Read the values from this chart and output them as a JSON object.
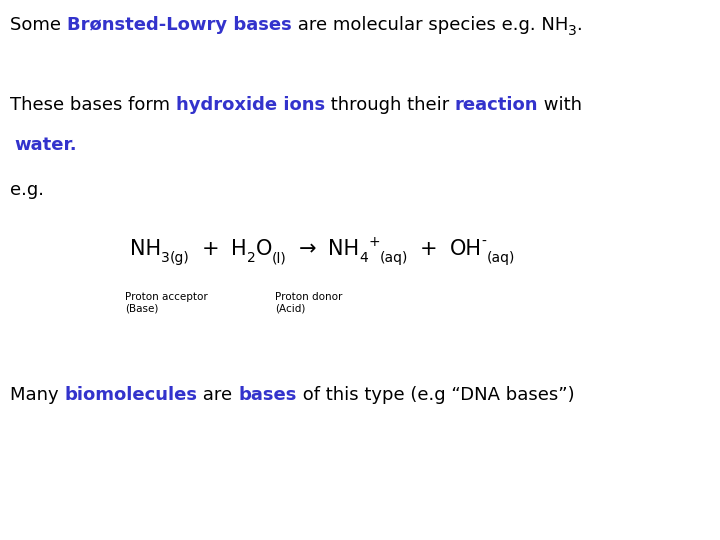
{
  "bg_color": "#ffffff",
  "blue_color": "#3333cc",
  "black_color": "#000000",
  "line1_parts": [
    {
      "text": "Some ",
      "color": "#000000",
      "bold": false,
      "sub": false
    },
    {
      "text": "Brønsted-Lowry bases",
      "color": "#3333cc",
      "bold": true,
      "sub": false
    },
    {
      "text": " are molecular species e.g. NH",
      "color": "#000000",
      "bold": false,
      "sub": false
    },
    {
      "text": "3",
      "color": "#000000",
      "bold": false,
      "sub": true
    },
    {
      "text": ".",
      "color": "#000000",
      "bold": false,
      "sub": false
    }
  ],
  "line2_parts": [
    {
      "text": "These bases form ",
      "color": "#000000",
      "bold": false
    },
    {
      "text": "hydroxide ions",
      "color": "#3333cc",
      "bold": true
    },
    {
      "text": " through their ",
      "color": "#000000",
      "bold": false
    },
    {
      "text": "reaction",
      "color": "#3333cc",
      "bold": true
    },
    {
      "text": " with",
      "color": "#000000",
      "bold": false
    }
  ],
  "line3_parts": [
    {
      "text": "water.",
      "color": "#3333cc",
      "bold": true
    }
  ],
  "line4": "e.g.",
  "proton_acceptor_label": "Proton acceptor\n(Base)",
  "proton_donor_label": "Proton donor\n(Acid)",
  "line_last_parts": [
    {
      "text": "Many ",
      "color": "#000000",
      "bold": false
    },
    {
      "text": "biomolecules",
      "color": "#3333cc",
      "bold": true
    },
    {
      "text": " are ",
      "color": "#000000",
      "bold": false
    },
    {
      "text": "bases",
      "color": "#3333cc",
      "bold": true
    },
    {
      "text": " of this type (e.g “DNA bases”)",
      "color": "#000000",
      "bold": false
    }
  ],
  "font_size_main": 13,
  "font_size_eq": 15,
  "font_size_sub": 10,
  "font_size_label": 7.5
}
